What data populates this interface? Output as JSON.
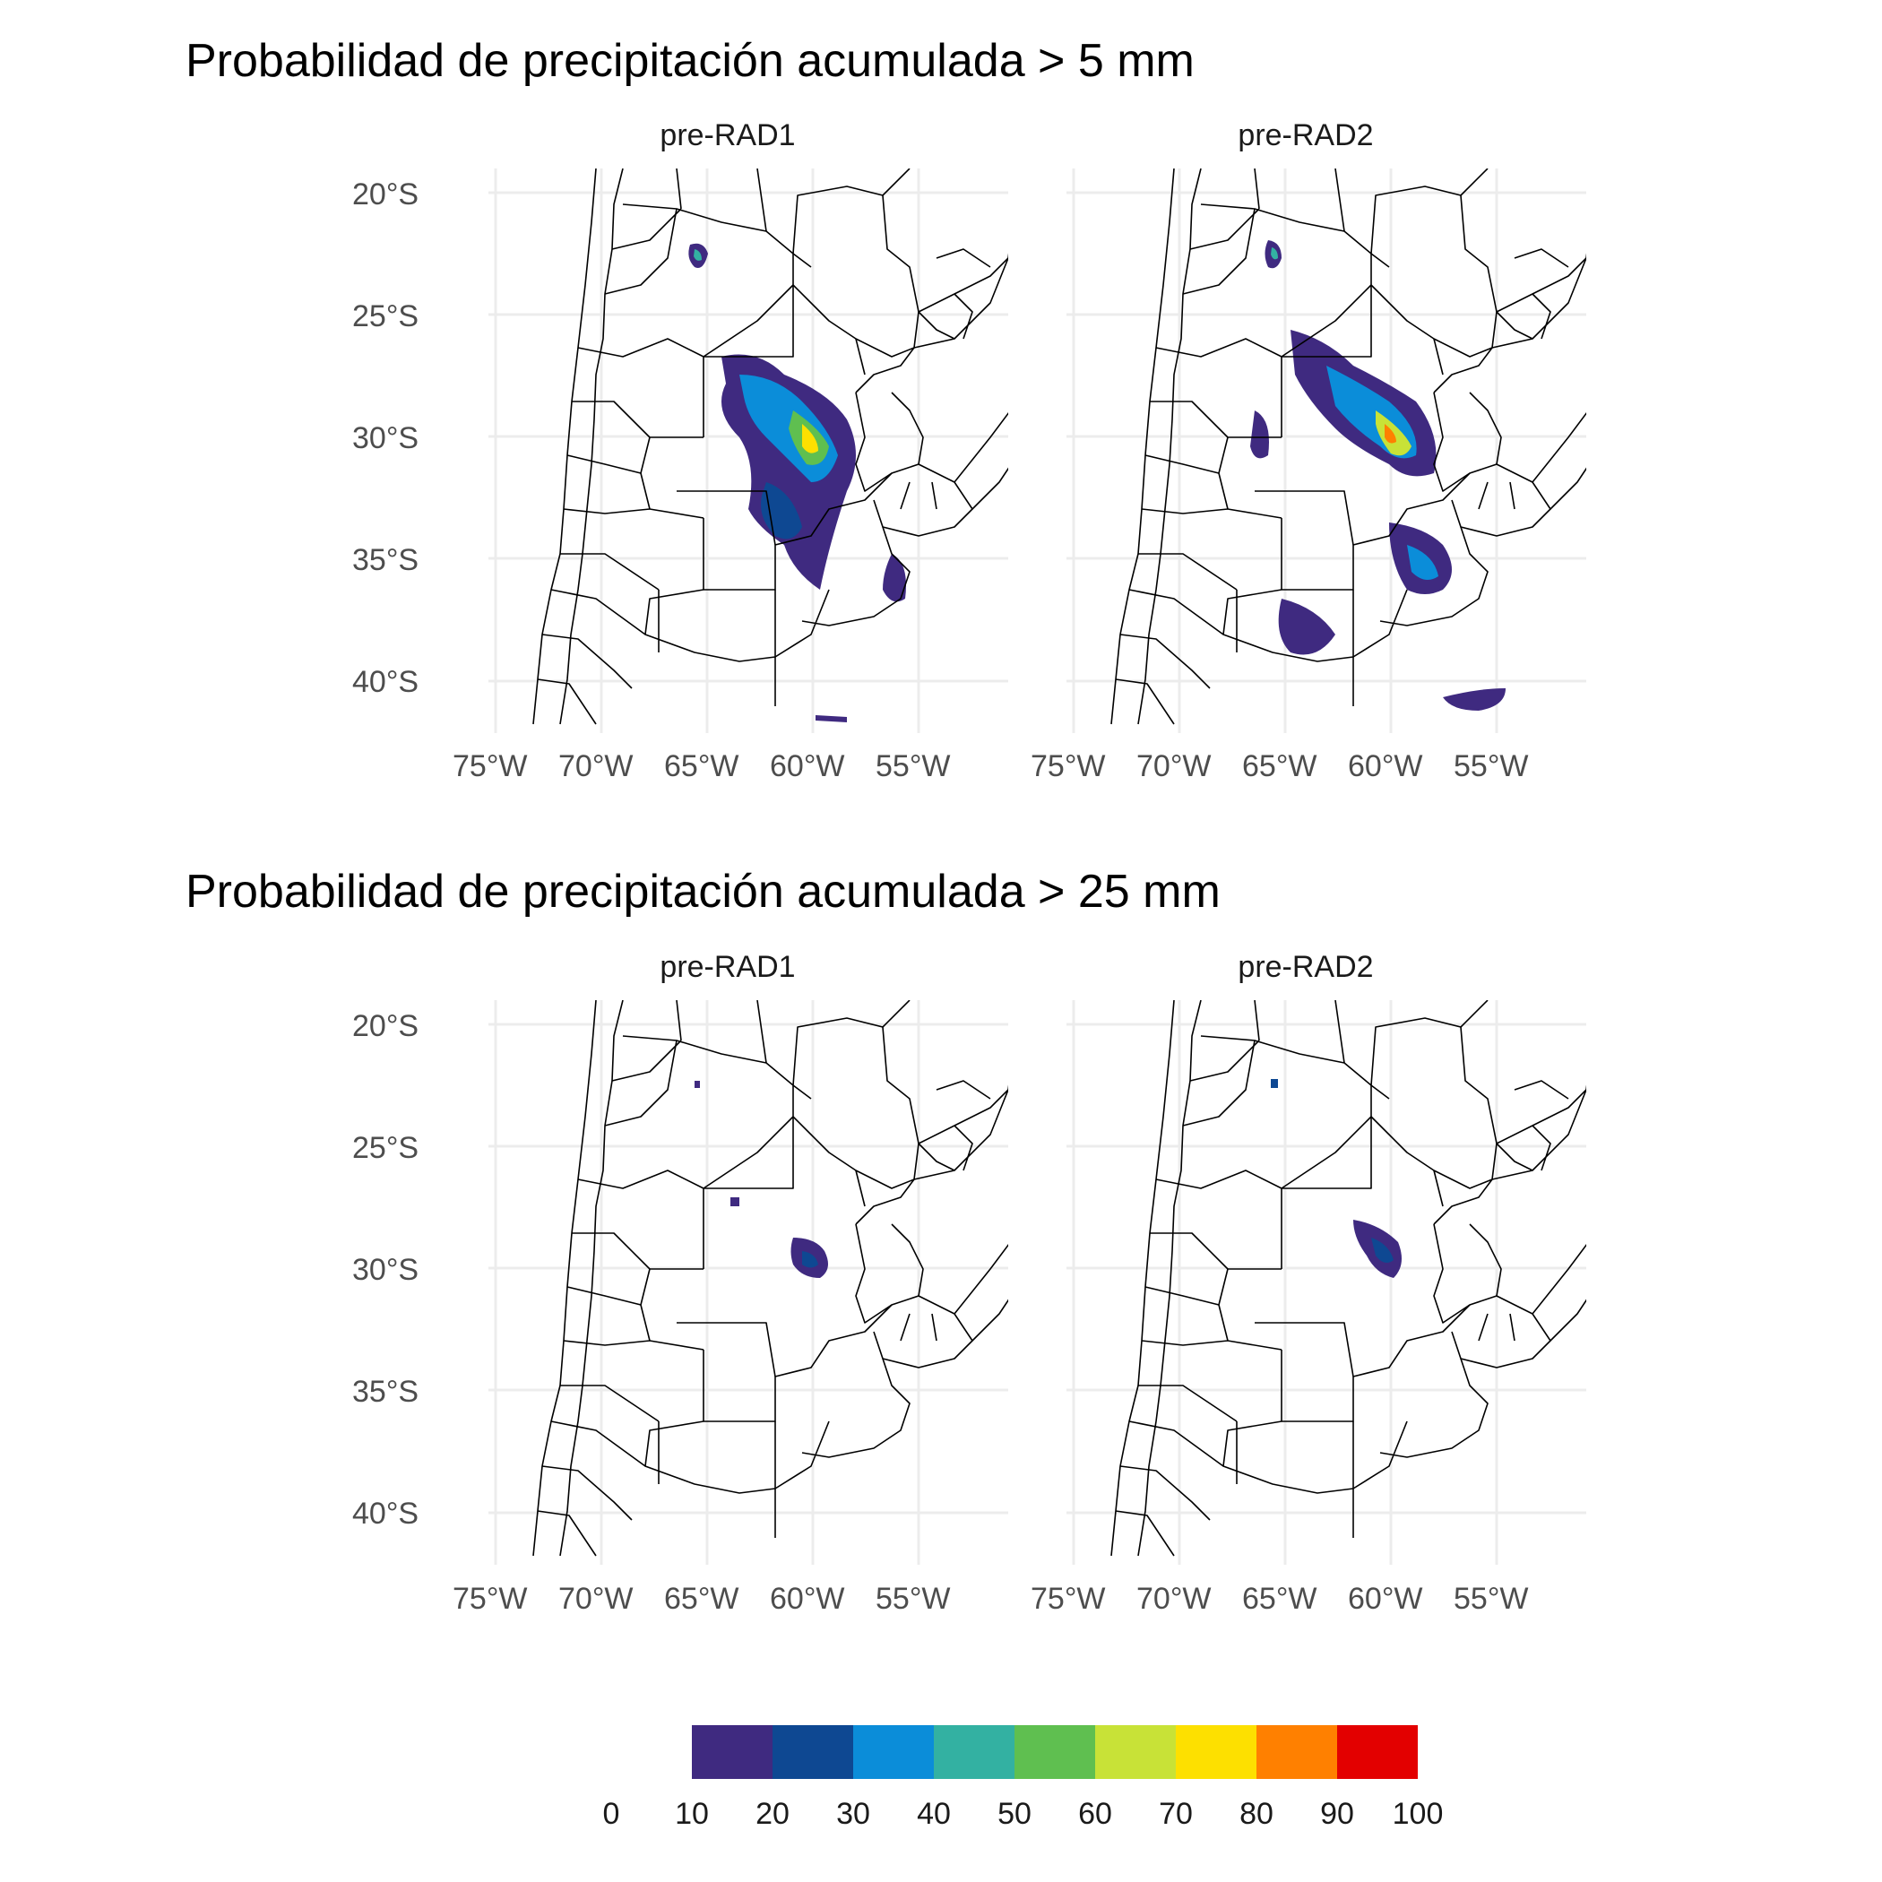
{
  "titles": [
    "Probabilidad de precipitación acumulada > 5 mm",
    "Probabilidad de precipitación acumulada > 25 mm"
  ],
  "panels": [
    "pre-RAD1",
    "pre-RAD2"
  ],
  "axes": {
    "x_ticks": [
      "75°W",
      "70°W",
      "65°W",
      "60°W",
      "55°W"
    ],
    "y_ticks": [
      "20°S",
      "25°S",
      "30°S",
      "35°S",
      "40°S"
    ],
    "lon_range": [
      -77,
      -51
    ],
    "lat_range": [
      -42,
      -19
    ]
  },
  "legend": {
    "breaks": [
      "0",
      "10",
      "20",
      "30",
      "40",
      "50",
      "60",
      "70",
      "80",
      "90",
      "100"
    ],
    "colors": [
      "#3f2a80",
      "#0e4892",
      "#0b8dd9",
      "#33b1a2",
      "#5fbf50",
      "#c8e237",
      "#fde000",
      "#ff8000",
      "#e30000"
    ]
  },
  "colors": {
    "grid": "#ececec",
    "border": "#000000"
  }
}
